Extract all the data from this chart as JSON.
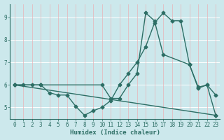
{
  "xlabel": "Humidex (Indice chaleur)",
  "bg_color": "#cce8ec",
  "grid_white_color": "#ffffff",
  "grid_pink_color": "#e8b4b8",
  "line_color": "#2d6e65",
  "xlim": [
    -0.5,
    23.5
  ],
  "ylim": [
    4.5,
    9.6
  ],
  "yticks": [
    5,
    6,
    7,
    8,
    9
  ],
  "xticks": [
    0,
    1,
    2,
    3,
    4,
    5,
    6,
    7,
    8,
    9,
    10,
    11,
    12,
    13,
    14,
    15,
    16,
    17,
    18,
    19,
    20,
    21,
    22,
    23
  ],
  "line1_x": [
    0,
    1,
    2,
    3,
    4,
    5,
    6,
    7,
    8,
    9,
    10,
    11,
    12,
    13,
    14,
    15,
    16,
    17,
    18,
    19,
    20,
    21,
    22,
    23
  ],
  "line1_y": [
    6.0,
    6.0,
    6.0,
    6.0,
    5.65,
    5.55,
    5.55,
    5.05,
    4.65,
    4.85,
    5.0,
    5.3,
    6.0,
    6.5,
    7.0,
    7.7,
    8.75,
    9.2,
    8.85,
    8.85,
    6.9,
    5.85,
    6.0,
    5.55
  ],
  "line2_x": [
    0,
    3,
    10,
    11,
    12,
    13,
    14,
    15,
    16,
    17,
    20,
    21,
    22,
    23
  ],
  "line2_y": [
    6.0,
    6.0,
    6.0,
    5.4,
    5.4,
    6.0,
    6.5,
    9.2,
    8.85,
    7.35,
    6.9,
    5.9,
    6.0,
    4.65
  ],
  "line3_x": [
    0,
    23
  ],
  "line3_y": [
    6.0,
    4.65
  ]
}
